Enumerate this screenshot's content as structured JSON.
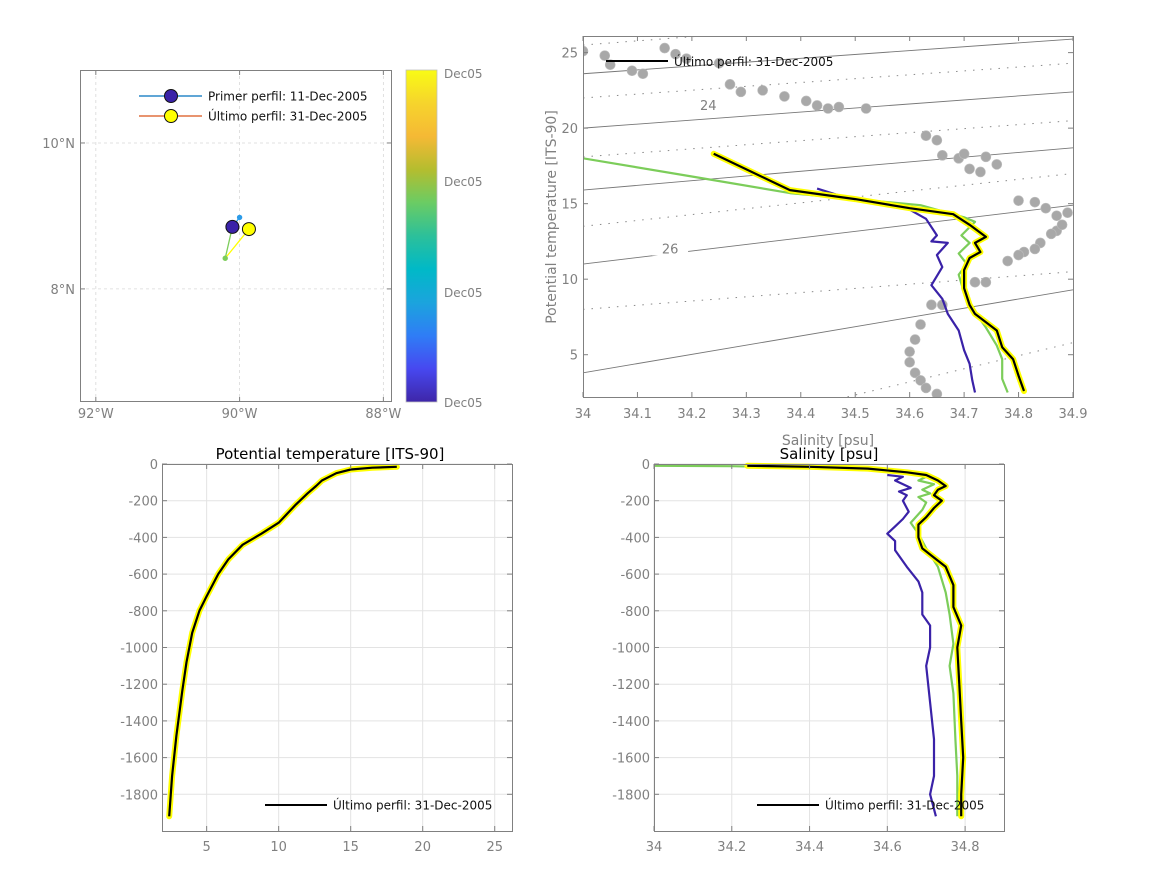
{
  "colors": {
    "first_profile": "#3a22a8",
    "mid_profile": "#7ccd5a",
    "last_profile": "#ffff00",
    "last_profile_line": "#000000",
    "mid_blue": "#2b9be8",
    "climatology": "#a8a8a8",
    "axis": "#808080",
    "legend_line_first": "#0072bd",
    "legend_line_last": "#d95319"
  },
  "chart_data": [
    {
      "type": "scatter",
      "name": "map",
      "title": "",
      "xlim": [
        -92.22,
        -87.88
      ],
      "ylim": [
        6.45,
        11.0
      ],
      "x_ticks": [
        -92,
        -90,
        -88
      ],
      "x_tick_labels": [
        "92°W",
        "90°W",
        "88°W"
      ],
      "y_ticks": [
        8,
        10
      ],
      "y_tick_labels": [
        "8°N",
        "10°N"
      ],
      "grid": true,
      "track": [
        {
          "lon": -90.1,
          "lat": 8.85,
          "color": "#3a22a8",
          "size": "large"
        },
        {
          "lon": -90.0,
          "lat": 8.98,
          "color": "#2b9be8",
          "size": "small"
        },
        {
          "lon": -90.2,
          "lat": 8.42,
          "color": "#7ccd5a",
          "size": "small"
        },
        {
          "lon": -89.87,
          "lat": 8.82,
          "color": "#ffff00",
          "size": "large"
        }
      ],
      "legend": [
        {
          "label": "Primer perfil: 11-Dec-2005",
          "marker_color": "#3a22a8",
          "line_color": "#0072bd"
        },
        {
          "label": "Último perfil: 31-Dec-2005",
          "marker_color": "#ffff00",
          "line_color": "#d95319"
        }
      ],
      "legend_placement": "top-right",
      "colorbar": {
        "tick_labels": [
          "Dec05",
          "Dec05",
          "Dec05",
          "Dec05"
        ],
        "colormap": [
          "#3e26a8",
          "#4748f0",
          "#2f7df6",
          "#1ba4dd",
          "#00b9c7",
          "#2cc09a",
          "#6acc64",
          "#b4bd2f",
          "#f5b935",
          "#f6d42c",
          "#f9fb15"
        ]
      }
    },
    {
      "type": "line",
      "name": "ts_diagram",
      "xlabel": "Salinity [psu]",
      "ylabel": "Potential temperature [ITS-90]",
      "xlim": [
        34.0,
        34.9
      ],
      "ylim": [
        2.2,
        26.1
      ],
      "x_ticks": [
        34,
        34.1,
        34.2,
        34.3,
        34.4,
        34.5,
        34.6,
        34.7,
        34.8,
        34.9
      ],
      "x_tick_labels": [
        "34",
        "34.1",
        "34.2",
        "34.3",
        "34.4",
        "34.5",
        "34.6",
        "34.7",
        "34.8",
        "34.9"
      ],
      "y_ticks": [
        5,
        10,
        15,
        20,
        25
      ],
      "y_tick_labels": [
        "5",
        "10",
        "15",
        "20",
        "25"
      ],
      "density_contour_labels": [
        {
          "text": "24",
          "s": 34.23,
          "t": 21.2
        },
        {
          "text": "26",
          "s": 34.16,
          "t": 11.7
        }
      ],
      "legend": [
        {
          "label": "Último perfil: 31-Dec-2005"
        }
      ],
      "legend_placement": "top-left",
      "series": [
        {
          "name": "first",
          "color": "#3a22a8",
          "points": [
            [
              34.43,
              16.0
            ],
            [
              34.5,
              15.2
            ],
            [
              34.6,
              14.6
            ],
            [
              34.63,
              14.0
            ],
            [
              34.65,
              12.9
            ],
            [
              34.64,
              12.5
            ],
            [
              34.67,
              12.4
            ],
            [
              34.65,
              11.6
            ],
            [
              34.66,
              10.8
            ],
            [
              34.64,
              9.6
            ],
            [
              34.66,
              8.7
            ],
            [
              34.67,
              7.7
            ],
            [
              34.69,
              6.6
            ],
            [
              34.7,
              5.3
            ],
            [
              34.71,
              4.4
            ],
            [
              34.715,
              3.3
            ],
            [
              34.72,
              2.5
            ]
          ]
        },
        {
          "name": "mid",
          "color": "#7ccd5a",
          "points": [
            [
              34.0,
              18.0
            ],
            [
              34.2,
              16.8
            ],
            [
              34.38,
              15.7
            ],
            [
              34.5,
              15.3
            ],
            [
              34.62,
              14.9
            ],
            [
              34.7,
              14.1
            ],
            [
              34.72,
              13.8
            ],
            [
              34.695,
              12.9
            ],
            [
              34.71,
              12.4
            ],
            [
              34.69,
              11.7
            ],
            [
              34.705,
              11.0
            ],
            [
              34.69,
              10.3
            ],
            [
              34.7,
              9.1
            ],
            [
              34.72,
              7.8
            ],
            [
              34.74,
              6.8
            ],
            [
              34.76,
              5.6
            ],
            [
              34.77,
              4.7
            ],
            [
              34.77,
              3.4
            ],
            [
              34.78,
              2.5
            ]
          ]
        },
        {
          "name": "last",
          "color": "#000000",
          "halo": "#ffff00",
          "points": [
            [
              34.24,
              18.3
            ],
            [
              34.38,
              15.9
            ],
            [
              34.5,
              15.3
            ],
            [
              34.6,
              14.7
            ],
            [
              34.68,
              14.3
            ],
            [
              34.71,
              13.6
            ],
            [
              34.74,
              12.8
            ],
            [
              34.72,
              12.4
            ],
            [
              34.73,
              11.8
            ],
            [
              34.71,
              11.4
            ],
            [
              34.7,
              10.6
            ],
            [
              34.7,
              9.4
            ],
            [
              34.71,
              8.3
            ],
            [
              34.72,
              7.7
            ],
            [
              34.76,
              6.6
            ],
            [
              34.77,
              5.5
            ],
            [
              34.79,
              4.7
            ],
            [
              34.8,
              3.6
            ],
            [
              34.81,
              2.6
            ]
          ]
        }
      ],
      "climatology_points": [
        [
          34.0,
          25.1
        ],
        [
          34.04,
          24.8
        ],
        [
          34.05,
          24.2
        ],
        [
          34.09,
          23.8
        ],
        [
          34.11,
          23.6
        ],
        [
          34.15,
          25.3
        ],
        [
          34.17,
          24.9
        ],
        [
          34.19,
          24.6
        ],
        [
          34.25,
          24.3
        ],
        [
          34.27,
          22.9
        ],
        [
          34.29,
          22.4
        ],
        [
          34.33,
          22.5
        ],
        [
          34.37,
          22.1
        ],
        [
          34.41,
          21.8
        ],
        [
          34.43,
          21.5
        ],
        [
          34.45,
          21.3
        ],
        [
          34.47,
          21.4
        ],
        [
          34.52,
          21.3
        ],
        [
          34.63,
          19.5
        ],
        [
          34.65,
          19.2
        ],
        [
          34.66,
          18.2
        ],
        [
          34.69,
          18.0
        ],
        [
          34.7,
          18.3
        ],
        [
          34.71,
          17.3
        ],
        [
          34.73,
          17.1
        ],
        [
          34.74,
          18.1
        ],
        [
          34.76,
          17.6
        ],
        [
          34.8,
          15.2
        ],
        [
          34.83,
          15.1
        ],
        [
          34.85,
          14.7
        ],
        [
          34.87,
          14.2
        ],
        [
          34.89,
          14.4
        ],
        [
          34.87,
          13.2
        ],
        [
          34.84,
          12.4
        ],
        [
          34.81,
          11.8
        ],
        [
          34.78,
          11.2
        ],
        [
          34.8,
          11.6
        ],
        [
          34.83,
          12.0
        ],
        [
          34.86,
          13.0
        ],
        [
          34.88,
          13.6
        ],
        [
          34.72,
          9.8
        ],
        [
          34.74,
          9.8
        ],
        [
          34.64,
          8.3
        ],
        [
          34.66,
          8.3
        ],
        [
          34.62,
          7.0
        ],
        [
          34.61,
          6.0
        ],
        [
          34.6,
          5.2
        ],
        [
          34.6,
          4.5
        ],
        [
          34.61,
          3.8
        ],
        [
          34.62,
          3.3
        ],
        [
          34.63,
          2.8
        ],
        [
          34.65,
          2.4
        ]
      ]
    },
    {
      "type": "line",
      "name": "temperature_profile",
      "title": "Potential temperature [ITS-90]",
      "xlim": [
        1.9,
        26.2
      ],
      "ylim": [
        -2000,
        0
      ],
      "x_ticks": [
        5,
        10,
        15,
        20,
        25
      ],
      "x_tick_labels": [
        "5",
        "10",
        "15",
        "20",
        "25"
      ],
      "y_ticks": [
        0,
        -200,
        -400,
        -600,
        -800,
        -1000,
        -1200,
        -1400,
        -1600,
        -1800
      ],
      "y_tick_labels": [
        "0",
        "-200",
        "-400",
        "-600",
        "-800",
        "-1000",
        "-1200",
        "-1400",
        "-1600",
        "-1800"
      ],
      "grid": true,
      "legend": [
        {
          "label": "Último perfil: 31-Dec-2005"
        }
      ],
      "legend_placement": "bottom-right",
      "series": [
        {
          "name": "last",
          "color": "#000000",
          "halo": "#ffff00",
          "points": [
            [
              18.2,
              -15
            ],
            [
              16.5,
              -20
            ],
            [
              15,
              -30
            ],
            [
              14,
              -50
            ],
            [
              13,
              -90
            ],
            [
              12.6,
              -120
            ],
            [
              12,
              -160
            ],
            [
              11.2,
              -220
            ],
            [
              10,
              -320
            ],
            [
              8.8,
              -380
            ],
            [
              7.5,
              -440
            ],
            [
              6.5,
              -520
            ],
            [
              5.8,
              -600
            ],
            [
              5.0,
              -720
            ],
            [
              4.5,
              -800
            ],
            [
              4.0,
              -920
            ],
            [
              3.6,
              -1080
            ],
            [
              3.3,
              -1240
            ],
            [
              2.9,
              -1480
            ],
            [
              2.6,
              -1700
            ],
            [
              2.4,
              -1920
            ]
          ]
        }
      ]
    },
    {
      "type": "line",
      "name": "salinity_profile",
      "title": "Salinity [psu]",
      "xlim": [
        34.0,
        34.9
      ],
      "ylim": [
        -2000,
        0
      ],
      "x_ticks": [
        34,
        34.2,
        34.4,
        34.6,
        34.8
      ],
      "x_tick_labels": [
        "34",
        "34.2",
        "34.4",
        "34.6",
        "34.8"
      ],
      "y_ticks": [
        0,
        -200,
        -400,
        -600,
        -800,
        -1000,
        -1200,
        -1400,
        -1600,
        -1800
      ],
      "y_tick_labels": [
        "0",
        "-200",
        "-400",
        "-600",
        "-800",
        "-1000",
        "-1200",
        "-1400",
        "-1600",
        "-1800"
      ],
      "grid": true,
      "legend": [
        {
          "label": "Último perfil: 31-Dec-2005"
        }
      ],
      "legend_placement": "bottom-right",
      "series": [
        {
          "name": "first",
          "color": "#3a22a8",
          "points": [
            [
              34.6,
              -60
            ],
            [
              34.64,
              -70
            ],
            [
              34.62,
              -90
            ],
            [
              34.65,
              -120
            ],
            [
              34.66,
              -130
            ],
            [
              34.63,
              -150
            ],
            [
              34.65,
              -170
            ],
            [
              34.64,
              -200
            ],
            [
              34.655,
              -260
            ],
            [
              34.64,
              -300
            ],
            [
              34.62,
              -340
            ],
            [
              34.6,
              -380
            ],
            [
              34.62,
              -420
            ],
            [
              34.62,
              -470
            ],
            [
              34.65,
              -560
            ],
            [
              34.68,
              -640
            ],
            [
              34.69,
              -700
            ],
            [
              34.69,
              -820
            ],
            [
              34.71,
              -880
            ],
            [
              34.71,
              -1000
            ],
            [
              34.7,
              -1100
            ],
            [
              34.71,
              -1300
            ],
            [
              34.72,
              -1500
            ],
            [
              34.72,
              -1700
            ],
            [
              34.71,
              -1800
            ],
            [
              34.725,
              -1920
            ]
          ]
        },
        {
          "name": "mid",
          "color": "#7ccd5a",
          "points": [
            [
              34.0,
              -10
            ],
            [
              34.2,
              -12
            ],
            [
              34.4,
              -20
            ],
            [
              34.6,
              -40
            ],
            [
              34.71,
              -60
            ],
            [
              34.68,
              -90
            ],
            [
              34.72,
              -110
            ],
            [
              34.69,
              -140
            ],
            [
              34.71,
              -160
            ],
            [
              34.68,
              -180
            ],
            [
              34.7,
              -210
            ],
            [
              34.69,
              -250
            ],
            [
              34.66,
              -320
            ],
            [
              34.68,
              -380
            ],
            [
              34.7,
              -460
            ],
            [
              34.73,
              -560
            ],
            [
              34.75,
              -700
            ],
            [
              34.76,
              -820
            ],
            [
              34.77,
              -980
            ],
            [
              34.76,
              -1100
            ],
            [
              34.77,
              -1250
            ],
            [
              34.775,
              -1500
            ],
            [
              34.78,
              -1700
            ],
            [
              34.78,
              -1920
            ]
          ]
        },
        {
          "name": "last",
          "color": "#000000",
          "halo": "#ffff00",
          "points": [
            [
              34.24,
              -10
            ],
            [
              34.4,
              -15
            ],
            [
              34.55,
              -25
            ],
            [
              34.65,
              -45
            ],
            [
              34.7,
              -60
            ],
            [
              34.73,
              -90
            ],
            [
              34.75,
              -120
            ],
            [
              34.73,
              -140
            ],
            [
              34.72,
              -170
            ],
            [
              34.74,
              -200
            ],
            [
              34.72,
              -240
            ],
            [
              34.7,
              -290
            ],
            [
              34.68,
              -330
            ],
            [
              34.68,
              -400
            ],
            [
              34.69,
              -460
            ],
            [
              34.72,
              -510
            ],
            [
              34.75,
              -560
            ],
            [
              34.77,
              -660
            ],
            [
              34.77,
              -780
            ],
            [
              34.79,
              -880
            ],
            [
              34.78,
              -1000
            ],
            [
              34.785,
              -1200
            ],
            [
              34.79,
              -1400
            ],
            [
              34.795,
              -1600
            ],
            [
              34.79,
              -1800
            ],
            [
              34.79,
              -1920
            ]
          ]
        }
      ]
    }
  ]
}
